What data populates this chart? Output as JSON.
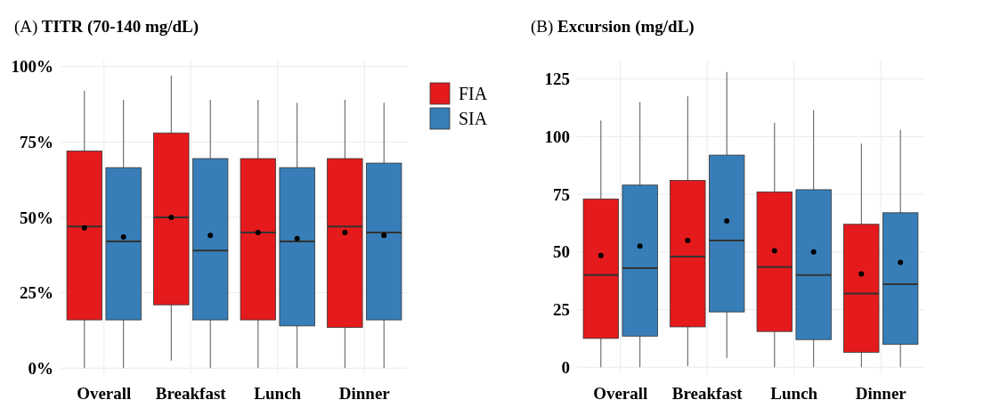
{
  "chart_data": [
    {
      "type": "box",
      "title": "(A) TITR (70-140 mg/dL)",
      "categories": [
        "Overall",
        "Breakfast",
        "Lunch",
        "Dinner"
      ],
      "ylim": [
        -2,
        102
      ],
      "yticks": [
        {
          "value": 0,
          "label": "0%"
        },
        {
          "value": 25,
          "label": "25%"
        },
        {
          "value": 50,
          "label": "50%"
        },
        {
          "value": 75,
          "label": "75%"
        },
        {
          "value": 100,
          "label": "100%"
        }
      ],
      "grid": true,
      "legend": "right",
      "series": [
        {
          "name": "FIA",
          "color": "#e41a1c",
          "boxes": [
            {
              "low": 0,
              "q1": 16,
              "median": 47,
              "q3": 72,
              "high": 92,
              "mean": 46.5
            },
            {
              "low": 2.5,
              "q1": 21,
              "median": 50,
              "q3": 78,
              "high": 97,
              "mean": 50
            },
            {
              "low": 0,
              "q1": 16,
              "median": 45,
              "q3": 69.5,
              "high": 89,
              "mean": 45
            },
            {
              "low": 0,
              "q1": 13.5,
              "median": 47,
              "q3": 69.5,
              "high": 89,
              "mean": 45
            }
          ]
        },
        {
          "name": "SIA",
          "color": "#377eb8",
          "boxes": [
            {
              "low": 0,
              "q1": 16,
              "median": 42,
              "q3": 66.5,
              "high": 89,
              "mean": 43.5
            },
            {
              "low": 0,
              "q1": 16,
              "median": 39,
              "q3": 69.5,
              "high": 89,
              "mean": 44
            },
            {
              "low": 0,
              "q1": 14,
              "median": 42,
              "q3": 66.5,
              "high": 88,
              "mean": 43
            },
            {
              "low": 0,
              "q1": 16,
              "median": 45,
              "q3": 68,
              "high": 88,
              "mean": 44
            }
          ]
        }
      ]
    },
    {
      "type": "box",
      "title": "(B) Excursion (mg/dL)",
      "categories": [
        "Overall",
        "Breakfast",
        "Lunch",
        "Dinner"
      ],
      "ylim": [
        -3,
        133
      ],
      "yticks": [
        0,
        25,
        50,
        75,
        100,
        125
      ],
      "grid": true,
      "series": [
        {
          "color": "#e41a1c",
          "boxes": [
            {
              "low": 0,
              "q1": 12.5,
              "median": 40,
              "q3": 73,
              "high": 107,
              "mean": 48.5
            },
            {
              "low": 0.5,
              "q1": 17.5,
              "median": 48,
              "q3": 81,
              "high": 117.5,
              "mean": 55
            },
            {
              "low": 0,
              "q1": 15.5,
              "median": 43.5,
              "q3": 76,
              "high": 106,
              "mean": 50.5
            },
            {
              "low": 0,
              "q1": 6.5,
              "median": 32,
              "q3": 62,
              "high": 97,
              "mean": 40.5
            }
          ]
        },
        {
          "color": "#377eb8",
          "boxes": [
            {
              "low": 0,
              "q1": 13.5,
              "median": 43,
              "q3": 79,
              "high": 115,
              "mean": 52.5
            },
            {
              "low": 4,
              "q1": 24,
              "median": 55,
              "q3": 92,
              "high": 128,
              "mean": 63.5
            },
            {
              "low": 0,
              "q1": 12,
              "median": 40,
              "q3": 77,
              "high": 111.5,
              "mean": 50
            },
            {
              "low": 0,
              "q1": 10,
              "median": 36,
              "q3": 67,
              "high": 103,
              "mean": 45.5
            }
          ]
        }
      ]
    }
  ]
}
